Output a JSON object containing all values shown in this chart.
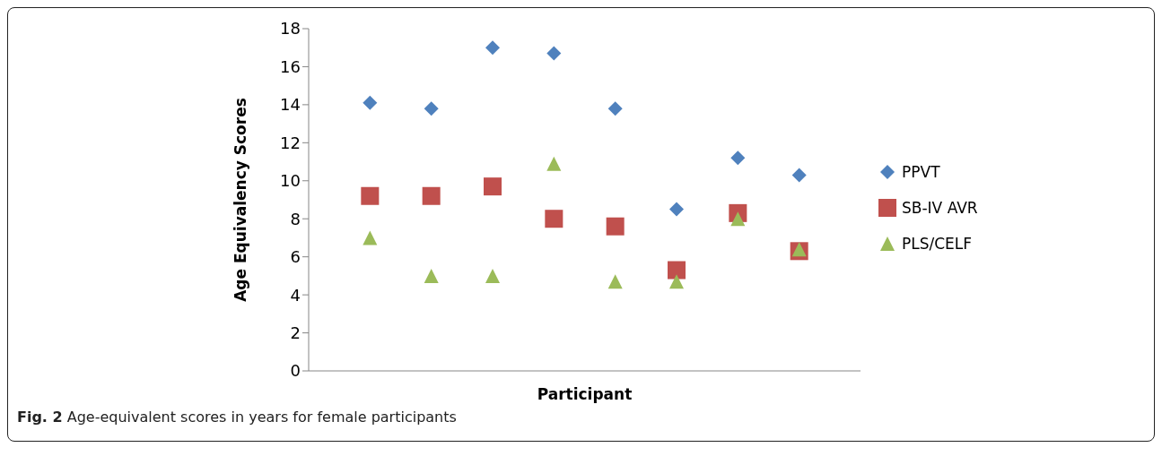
{
  "chart_data": {
    "type": "scatter",
    "xlabel": "Participant",
    "ylabel": "Age Equivalency Scores",
    "categories": [
      null,
      null,
      null,
      null,
      null,
      null,
      null,
      null
    ],
    "series": [
      {
        "name": "PPVT",
        "color": "#4f81bd",
        "marker": "diamond",
        "values": [
          14.1,
          13.8,
          17.0,
          16.7,
          13.8,
          8.5,
          11.2,
          10.3
        ]
      },
      {
        "name": "SB-IV AVR",
        "color": "#c0504d",
        "marker": "square",
        "values": [
          9.2,
          9.2,
          9.7,
          8.0,
          7.6,
          5.3,
          8.3,
          6.3
        ]
      },
      {
        "name": "PLS/CELF",
        "color": "#9bbb59",
        "marker": "triangle",
        "values": [
          7.0,
          5.0,
          5.0,
          10.9,
          4.7,
          4.7,
          8.0,
          6.4
        ]
      }
    ],
    "ylim": [
      0,
      18
    ],
    "yticks": [
      0,
      2,
      4,
      6,
      8,
      10,
      12,
      14,
      16,
      18
    ],
    "grid": false,
    "legend": "right",
    "tick_labels": "y",
    "annotations": [
      "Fig. 2 Age-equivalent scores in years for female participants"
    ]
  }
}
